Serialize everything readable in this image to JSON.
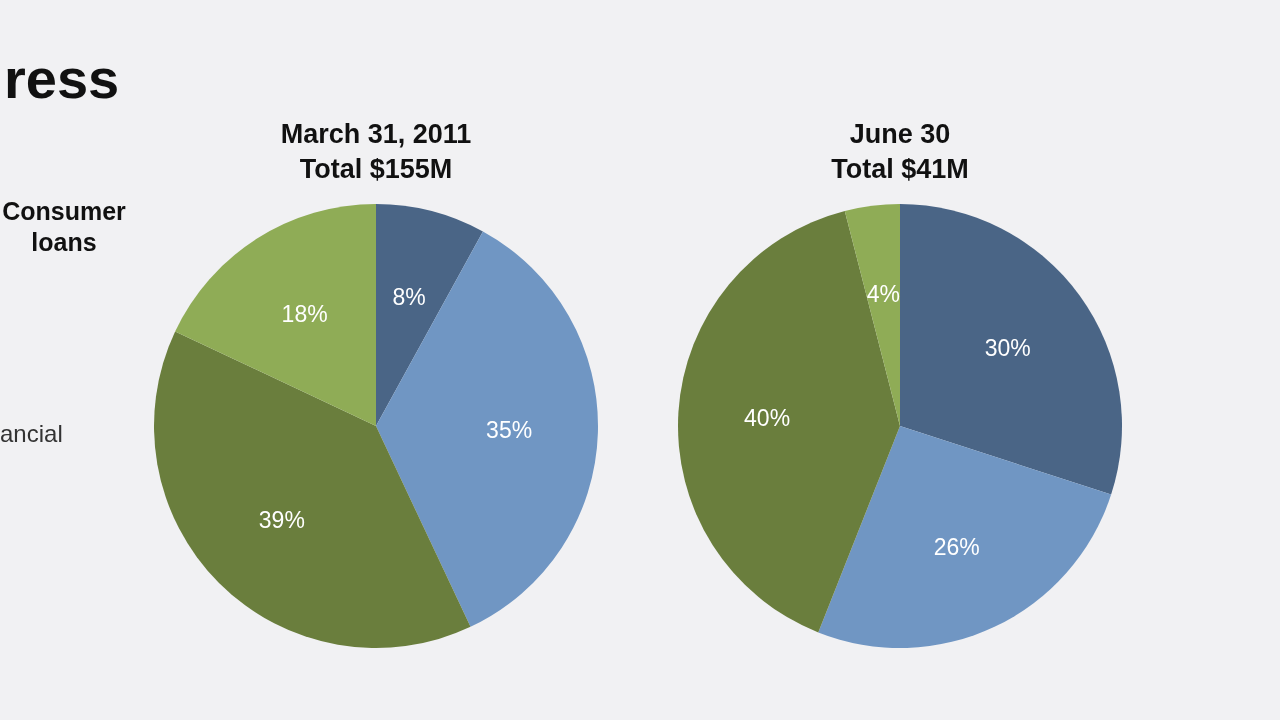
{
  "chart_data": [
    {
      "type": "pie",
      "title": "ress",
      "subtitle": "March 31, 2011\nTotal $155M",
      "categories": [
        null,
        null,
        null,
        null
      ],
      "values": [
        8,
        35,
        39,
        18
      ],
      "value_labels": [
        "8%",
        "35%",
        "39%",
        "18%"
      ],
      "colors": [
        "#4a6586",
        "#7096c3",
        "#6a7e3d",
        "#8fac56"
      ],
      "annotations": [
        "Consumer\nloans",
        "ancial"
      ]
    },
    {
      "type": "pie",
      "subtitle": "June 30\nTotal $41M",
      "categories": [
        null,
        null,
        null,
        null
      ],
      "values": [
        30,
        26,
        40,
        4
      ],
      "value_labels": [
        "30%",
        "26%",
        "40%",
        "4%"
      ],
      "colors": [
        "#4a6586",
        "#7096c3",
        "#6a7e3d",
        "#8fac56"
      ]
    }
  ]
}
